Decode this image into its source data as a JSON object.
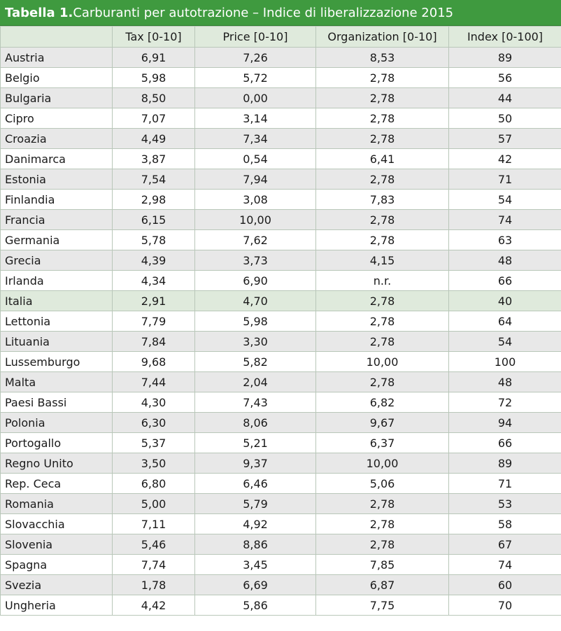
{
  "title": {
    "prefix": "Tabella 1.",
    "text": " Carburanti per autotrazione – Indice di liberalizzazione 2015"
  },
  "columns": [
    "",
    "Tax [0-10]",
    "Price [0-10]",
    "Organization [0-10]",
    "Index [0-100]"
  ],
  "highlight_color": "#dfeadc",
  "header_color": "#3f9a3f",
  "rows": [
    {
      "country": "Austria",
      "tax": "6,91",
      "price": "7,26",
      "org": "8,53",
      "index": "89"
    },
    {
      "country": "Belgio",
      "tax": "5,98",
      "price": "5,72",
      "org": "2,78",
      "index": "56"
    },
    {
      "country": "Bulgaria",
      "tax": "8,50",
      "price": "0,00",
      "org": "2,78",
      "index": "44"
    },
    {
      "country": "Cipro",
      "tax": "7,07",
      "price": "3,14",
      "org": "2,78",
      "index": "50"
    },
    {
      "country": "Croazia",
      "tax": "4,49",
      "price": "7,34",
      "org": "2,78",
      "index": "57"
    },
    {
      "country": "Danimarca",
      "tax": "3,87",
      "price": "0,54",
      "org": "6,41",
      "index": "42"
    },
    {
      "country": "Estonia",
      "tax": "7,54",
      "price": "7,94",
      "org": "2,78",
      "index": "71"
    },
    {
      "country": "Finlandia",
      "tax": "2,98",
      "price": "3,08",
      "org": "7,83",
      "index": "54"
    },
    {
      "country": "Francia",
      "tax": "6,15",
      "price": "10,00",
      "org": "2,78",
      "index": "74"
    },
    {
      "country": "Germania",
      "tax": "5,78",
      "price": "7,62",
      "org": "2,78",
      "index": "63"
    },
    {
      "country": "Grecia",
      "tax": "4,39",
      "price": "3,73",
      "org": "4,15",
      "index": "48"
    },
    {
      "country": "Irlanda",
      "tax": "4,34",
      "price": "6,90",
      "org": "n.r.",
      "index": "66"
    },
    {
      "country": "Italia",
      "tax": "2,91",
      "price": "4,70",
      "org": "2,78",
      "index": "40",
      "highlight": true
    },
    {
      "country": "Lettonia",
      "tax": "7,79",
      "price": "5,98",
      "org": "2,78",
      "index": "64"
    },
    {
      "country": "Lituania",
      "tax": "7,84",
      "price": "3,30",
      "org": "2,78",
      "index": "54"
    },
    {
      "country": "Lussemburgo",
      "tax": "9,68",
      "price": "5,82",
      "org": "10,00",
      "index": "100"
    },
    {
      "country": "Malta",
      "tax": "7,44",
      "price": "2,04",
      "org": "2,78",
      "index": "48"
    },
    {
      "country": "Paesi Bassi",
      "tax": "4,30",
      "price": "7,43",
      "org": "6,82",
      "index": "72"
    },
    {
      "country": "Polonia",
      "tax": "6,30",
      "price": "8,06",
      "org": "9,67",
      "index": "94"
    },
    {
      "country": "Portogallo",
      "tax": "5,37",
      "price": "5,21",
      "org": "6,37",
      "index": "66"
    },
    {
      "country": "Regno Unito",
      "tax": "3,50",
      "price": "9,37",
      "org": "10,00",
      "index": "89"
    },
    {
      "country": "Rep. Ceca",
      "tax": "6,80",
      "price": "6,46",
      "org": "5,06",
      "index": "71"
    },
    {
      "country": "Romania",
      "tax": "5,00",
      "price": "5,79",
      "org": "2,78",
      "index": "53"
    },
    {
      "country": "Slovacchia",
      "tax": "7,11",
      "price": "4,92",
      "org": "2,78",
      "index": "58"
    },
    {
      "country": "Slovenia",
      "tax": "5,46",
      "price": "8,86",
      "org": "2,78",
      "index": "67"
    },
    {
      "country": "Spagna",
      "tax": "7,74",
      "price": "3,45",
      "org": "7,85",
      "index": "74"
    },
    {
      "country": "Svezia",
      "tax": "1,78",
      "price": "6,69",
      "org": "6,87",
      "index": "60"
    },
    {
      "country": "Ungheria",
      "tax": "4,42",
      "price": "5,86",
      "org": "7,75",
      "index": "70"
    }
  ]
}
